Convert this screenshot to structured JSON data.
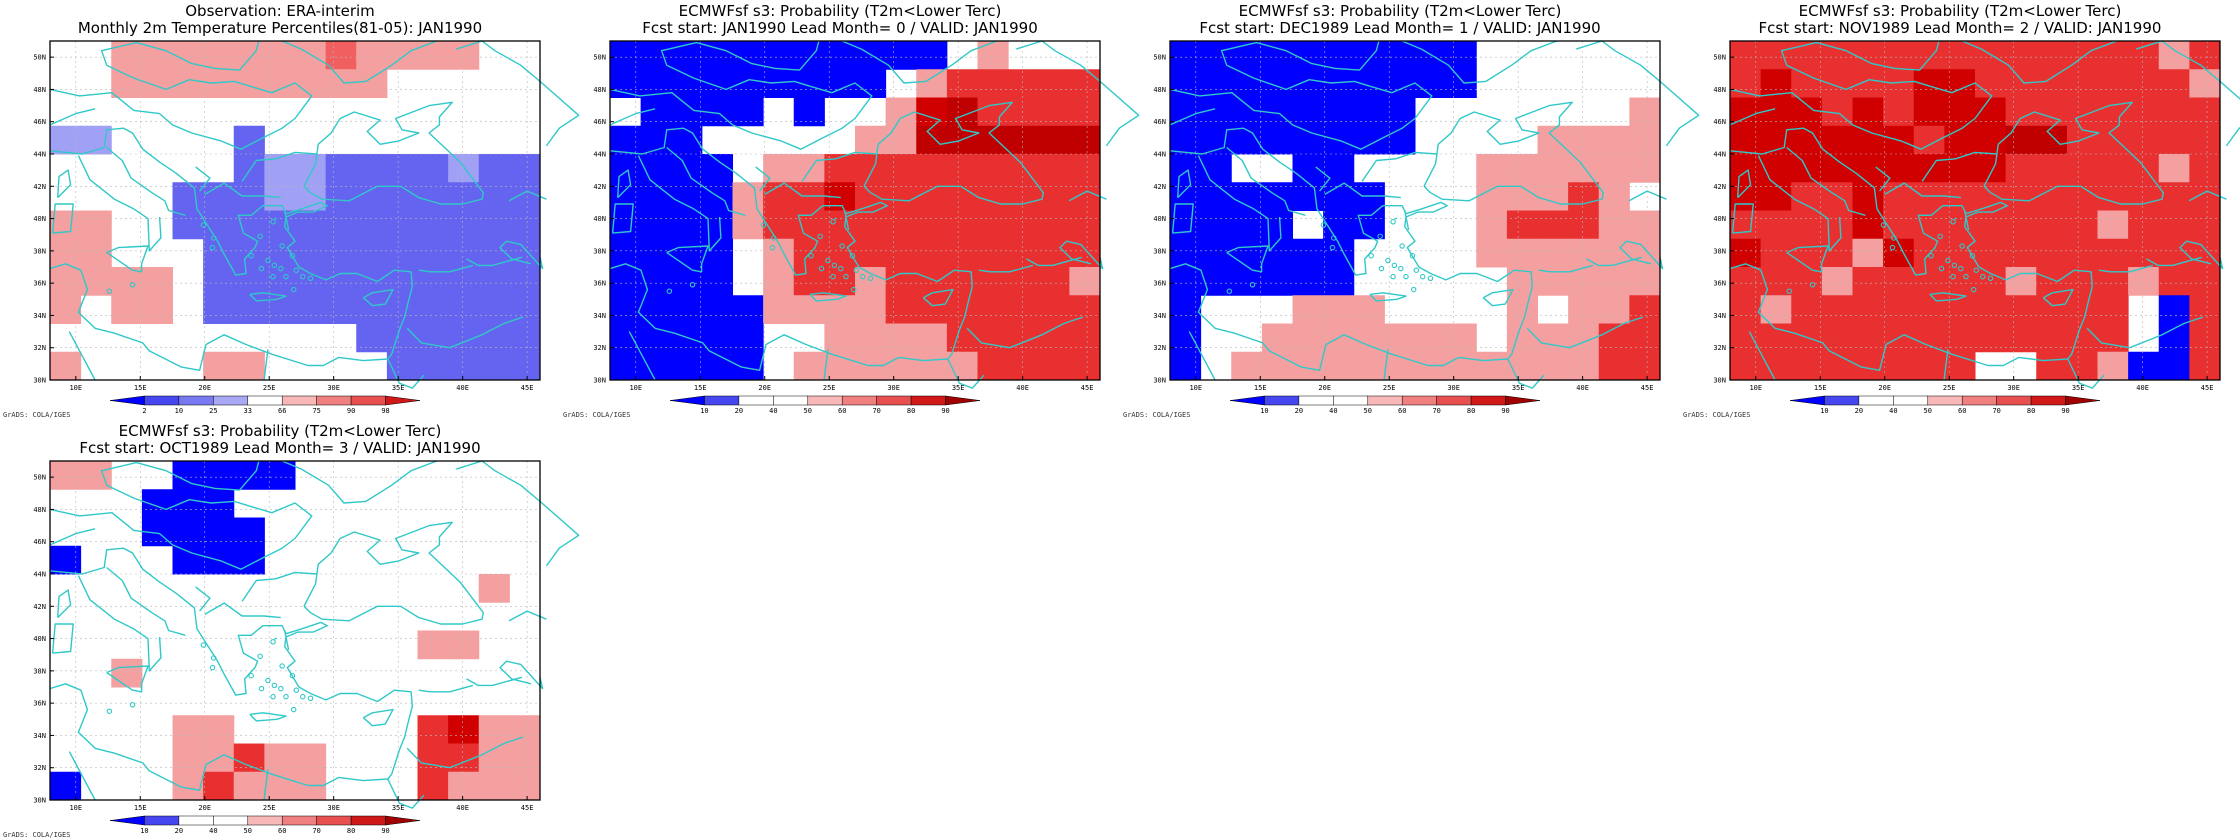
{
  "page": {
    "title": "ERA-interim observation vs ECMWF s3 forecast probabilities, JAN1990"
  },
  "colors": {
    "coast": "#30c8c8",
    "grid": "#b8b8b8",
    "frame": "#000000",
    "blue_dark": "#0000ff",
    "blue_mid": "#6464f0",
    "blue_light": "#a0a0f4",
    "red_light": "#f4a0a0",
    "red_mid": "#f06060",
    "red_strong": "#e83030",
    "red_dark": "#d00000"
  },
  "axes": {
    "lon_labels": [
      "10E",
      "15E",
      "20E",
      "25E",
      "30E",
      "35E",
      "40E",
      "45E"
    ],
    "lat_labels": [
      "30N",
      "32N",
      "34N",
      "36N",
      "38N",
      "40N",
      "42N",
      "44N",
      "46N",
      "48N",
      "50N"
    ],
    "lon_range": [
      8,
      46
    ],
    "lat_range": [
      30,
      51
    ]
  },
  "credit": "GrADS: COLA/IGES",
  "panels": [
    {
      "title1": "Observation: ERA-interim",
      "title2": "Monthly 2m Temperature Percentiles(81-05): JAN1990",
      "colorbar": {
        "labels": [
          "2",
          "10",
          "25",
          "33",
          "66",
          "75",
          "90",
          "98"
        ],
        "colors": [
          "#0000ff",
          "#4646f0",
          "#7878f0",
          "#a8a8f4",
          "#ffffff",
          "#f8b8b8",
          "#f08080",
          "#e85050",
          "#d01818"
        ]
      },
      "grid": [
        [
          0,
          0,
          3,
          3,
          3,
          3,
          3,
          3,
          3,
          5,
          3,
          3,
          3,
          3,
          0,
          0
        ],
        [
          0,
          0,
          3,
          3,
          3,
          3,
          3,
          3,
          3,
          3,
          3,
          2,
          2,
          0,
          0,
          0
        ],
        [
          0,
          0,
          0,
          0,
          0,
          0,
          0,
          0,
          0,
          0,
          0,
          0,
          0,
          0,
          0,
          0
        ],
        [
          -3,
          -3,
          0,
          0,
          0,
          0,
          -6,
          0,
          0,
          0,
          0,
          0,
          0,
          0,
          0,
          0
        ],
        [
          0,
          0,
          0,
          0,
          0,
          0,
          -6,
          -3,
          -3,
          -6,
          -6,
          -6,
          -6,
          -3,
          -6,
          -6
        ],
        [
          0,
          0,
          0,
          0,
          -6,
          -6,
          -6,
          -3,
          -3,
          -6,
          -6,
          -6,
          -6,
          -6,
          -6,
          -6
        ],
        [
          3,
          3,
          0,
          0,
          -6,
          -6,
          -6,
          -6,
          -6,
          -6,
          -6,
          -6,
          -6,
          -6,
          -6,
          -6
        ],
        [
          3,
          3,
          0,
          0,
          0,
          -6,
          -6,
          -6,
          -6,
          -6,
          -6,
          -6,
          -6,
          -6,
          -6,
          -6
        ],
        [
          3,
          3,
          3,
          3,
          0,
          -6,
          -6,
          -6,
          -6,
          -6,
          -6,
          -6,
          -6,
          -6,
          -6,
          -6
        ],
        [
          3,
          0,
          3,
          3,
          0,
          -6,
          -6,
          -6,
          -6,
          -6,
          -6,
          -6,
          -6,
          -6,
          -6,
          -6
        ],
        [
          0,
          0,
          0,
          0,
          0,
          0,
          0,
          0,
          0,
          0,
          -6,
          -6,
          -6,
          -6,
          -6,
          -6
        ],
        [
          3,
          0,
          0,
          0,
          0,
          3,
          3,
          0,
          0,
          0,
          0,
          -6,
          -6,
          -6,
          -6,
          -6
        ]
      ]
    },
    {
      "title1": "ECMWFsf s3: Probability (T2m<Lower Terc)",
      "title2": "Fcst start: JAN1990  Lead Month= 0 / VALID: JAN1990",
      "colorbar": {
        "labels": [
          "10",
          "20",
          "40",
          "50",
          "60",
          "70",
          "80",
          "90"
        ],
        "colors": [
          "#0000ff",
          "#4646f0",
          "#ffffff",
          "#ffffff",
          "#f8b8b8",
          "#f08080",
          "#e85050",
          "#d01818",
          "#a00000"
        ]
      },
      "grid": [
        [
          -9,
          -9,
          -9,
          -9,
          -9,
          -9,
          -9,
          -9,
          -9,
          -9,
          -9,
          0,
          3,
          0,
          0,
          0
        ],
        [
          -9,
          -9,
          -9,
          -9,
          -9,
          -9,
          -9,
          -9,
          -9,
          0,
          3,
          6,
          6,
          6,
          6,
          6
        ],
        [
          0,
          -9,
          -9,
          -9,
          -9,
          0,
          -9,
          0,
          0,
          3,
          8,
          9,
          6,
          6,
          6,
          6
        ],
        [
          -9,
          -9,
          -9,
          0,
          0,
          0,
          0,
          0,
          3,
          3,
          9,
          9,
          9,
          9,
          9,
          9
        ],
        [
          -9,
          -9,
          -9,
          -9,
          0,
          3,
          3,
          6,
          6,
          6,
          6,
          6,
          6,
          6,
          6,
          6
        ],
        [
          -9,
          -9,
          -9,
          -9,
          3,
          6,
          6,
          8,
          6,
          6,
          6,
          6,
          6,
          6,
          6,
          6
        ],
        [
          -9,
          -9,
          -9,
          -9,
          3,
          6,
          6,
          6,
          6,
          6,
          6,
          6,
          6,
          6,
          6,
          6
        ],
        [
          -9,
          -9,
          -9,
          -9,
          0,
          3,
          6,
          6,
          6,
          6,
          6,
          6,
          6,
          6,
          6,
          6
        ],
        [
          -9,
          -9,
          -9,
          -9,
          0,
          3,
          6,
          6,
          3,
          6,
          6,
          6,
          6,
          6,
          6,
          3
        ],
        [
          -9,
          -9,
          -9,
          -9,
          -9,
          3,
          3,
          3,
          3,
          6,
          6,
          6,
          6,
          6,
          6,
          6
        ],
        [
          -9,
          -9,
          -9,
          -9,
          -9,
          0,
          0,
          3,
          3,
          3,
          3,
          6,
          6,
          6,
          6,
          6
        ],
        [
          -9,
          -9,
          -9,
          -9,
          -9,
          0,
          3,
          3,
          3,
          3,
          3,
          3,
          6,
          6,
          6,
          6
        ]
      ]
    },
    {
      "title1": "ECMWFsf s3: Probability (T2m<Lower Terc)",
      "title2": "Fcst start: DEC1989  Lead Month= 1 / VALID: JAN1990",
      "colorbar": {
        "labels": [
          "10",
          "20",
          "40",
          "50",
          "60",
          "70",
          "80",
          "90"
        ],
        "colors": [
          "#0000ff",
          "#4646f0",
          "#ffffff",
          "#ffffff",
          "#f8b8b8",
          "#f08080",
          "#e85050",
          "#d01818",
          "#a00000"
        ]
      },
      "grid": [
        [
          -9,
          -9,
          -9,
          -9,
          -9,
          -9,
          -9,
          -9,
          -9,
          -9,
          0,
          0,
          0,
          0,
          0,
          0
        ],
        [
          -9,
          -9,
          -9,
          -9,
          -9,
          -9,
          -9,
          -9,
          -9,
          -9,
          0,
          0,
          0,
          0,
          0,
          0
        ],
        [
          -9,
          -9,
          -9,
          -9,
          -9,
          -9,
          -9,
          -9,
          0,
          0,
          0,
          0,
          0,
          0,
          0,
          3
        ],
        [
          -9,
          -9,
          -9,
          -9,
          -9,
          -9,
          -9,
          -9,
          0,
          0,
          0,
          0,
          3,
          3,
          3,
          3
        ],
        [
          -9,
          -9,
          0,
          0,
          -9,
          -9,
          0,
          0,
          0,
          0,
          3,
          3,
          3,
          3,
          3,
          3
        ],
        [
          -9,
          -9,
          -9,
          -9,
          -9,
          -9,
          -9,
          0,
          0,
          0,
          3,
          3,
          3,
          6,
          3,
          0
        ],
        [
          -9,
          -9,
          -9,
          -9,
          0,
          -9,
          -9,
          0,
          0,
          0,
          3,
          6,
          6,
          6,
          3,
          3
        ],
        [
          -9,
          -9,
          -9,
          -9,
          -9,
          -9,
          0,
          0,
          0,
          0,
          3,
          3,
          3,
          3,
          3,
          3
        ],
        [
          -9,
          -9,
          -9,
          -9,
          -9,
          -9,
          0,
          0,
          0,
          0,
          0,
          3,
          3,
          3,
          3,
          3
        ],
        [
          -9,
          0,
          0,
          0,
          3,
          3,
          3,
          0,
          0,
          0,
          0,
          3,
          0,
          3,
          3,
          6
        ],
        [
          -9,
          0,
          0,
          3,
          3,
          3,
          3,
          3,
          3,
          3,
          0,
          3,
          3,
          3,
          6,
          6
        ],
        [
          -9,
          0,
          3,
          3,
          3,
          3,
          3,
          3,
          3,
          3,
          3,
          3,
          3,
          3,
          6,
          6
        ]
      ]
    },
    {
      "title1": "ECMWFsf s3: Probability (T2m<Lower Terc)",
      "title2": "Fcst start: NOV1989  Lead Month= 2 / VALID: JAN1990",
      "colorbar": {
        "labels": [
          "10",
          "20",
          "40",
          "50",
          "60",
          "70",
          "80",
          "90"
        ],
        "colors": [
          "#0000ff",
          "#4646f0",
          "#ffffff",
          "#ffffff",
          "#f8b8b8",
          "#f08080",
          "#e85050",
          "#d01818",
          "#a00000"
        ]
      },
      "grid": [
        [
          6,
          6,
          6,
          6,
          6,
          6,
          6,
          6,
          6,
          6,
          6,
          6,
          6,
          6,
          3,
          6
        ],
        [
          6,
          8,
          6,
          6,
          6,
          6,
          8,
          8,
          6,
          6,
          6,
          6,
          6,
          6,
          6,
          3
        ],
        [
          8,
          8,
          8,
          6,
          8,
          6,
          8,
          8,
          8,
          6,
          6,
          6,
          6,
          6,
          6,
          6
        ],
        [
          8,
          8,
          8,
          8,
          8,
          8,
          6,
          8,
          8,
          9,
          9,
          6,
          6,
          6,
          6,
          6
        ],
        [
          8,
          8,
          8,
          8,
          8,
          8,
          8,
          8,
          8,
          6,
          6,
          6,
          6,
          6,
          3,
          6
        ],
        [
          8,
          8,
          6,
          6,
          8,
          6,
          6,
          6,
          6,
          6,
          6,
          6,
          6,
          6,
          6,
          6
        ],
        [
          6,
          6,
          6,
          6,
          8,
          6,
          6,
          6,
          6,
          6,
          6,
          6,
          3,
          6,
          6,
          6
        ],
        [
          8,
          6,
          6,
          6,
          3,
          8,
          6,
          6,
          6,
          6,
          6,
          6,
          6,
          6,
          6,
          6
        ],
        [
          6,
          6,
          6,
          3,
          6,
          6,
          6,
          6,
          6,
          3,
          6,
          6,
          6,
          3,
          6,
          6
        ],
        [
          6,
          3,
          6,
          6,
          6,
          6,
          6,
          6,
          6,
          6,
          6,
          6,
          6,
          0,
          -9,
          6
        ],
        [
          6,
          6,
          6,
          6,
          6,
          6,
          6,
          6,
          6,
          6,
          6,
          6,
          6,
          0,
          -9,
          6
        ],
        [
          6,
          6,
          6,
          6,
          6,
          6,
          6,
          6,
          0,
          0,
          6,
          6,
          3,
          -9,
          -9,
          6
        ]
      ]
    },
    {
      "title1": "ECMWFsf s3: Probability (T2m<Lower Terc)",
      "title2": "Fcst start: OCT1989  Lead Month= 3 / VALID: JAN1990",
      "colorbar": {
        "labels": [
          "10",
          "20",
          "40",
          "50",
          "60",
          "70",
          "80",
          "90"
        ],
        "colors": [
          "#0000ff",
          "#4646f0",
          "#ffffff",
          "#ffffff",
          "#f8b8b8",
          "#f08080",
          "#e85050",
          "#d01818",
          "#a00000"
        ]
      },
      "grid": [
        [
          3,
          3,
          0,
          0,
          -9,
          -9,
          -9,
          -9,
          0,
          0,
          0,
          0,
          0,
          0,
          0,
          0
        ],
        [
          0,
          0,
          0,
          -9,
          -9,
          -9,
          0,
          0,
          0,
          0,
          0,
          0,
          0,
          0,
          0,
          0
        ],
        [
          0,
          0,
          0,
          -9,
          -9,
          -9,
          -9,
          0,
          0,
          0,
          0,
          0,
          0,
          0,
          0,
          0
        ],
        [
          -9,
          0,
          0,
          0,
          -9,
          -9,
          -9,
          0,
          0,
          0,
          0,
          0,
          0,
          0,
          0,
          0
        ],
        [
          0,
          0,
          0,
          0,
          0,
          0,
          0,
          0,
          0,
          0,
          0,
          0,
          0,
          0,
          3,
          0
        ],
        [
          0,
          0,
          0,
          0,
          0,
          0,
          0,
          0,
          0,
          0,
          0,
          0,
          0,
          0,
          0,
          0
        ],
        [
          0,
          0,
          0,
          0,
          0,
          0,
          0,
          0,
          0,
          0,
          0,
          0,
          3,
          3,
          0,
          0
        ],
        [
          0,
          0,
          3,
          0,
          0,
          0,
          0,
          0,
          0,
          0,
          0,
          0,
          0,
          0,
          0,
          0
        ],
        [
          0,
          0,
          0,
          0,
          0,
          0,
          0,
          0,
          0,
          0,
          0,
          0,
          0,
          0,
          0,
          0
        ],
        [
          0,
          0,
          0,
          0,
          3,
          3,
          0,
          0,
          0,
          0,
          0,
          0,
          6,
          8,
          3,
          3
        ],
        [
          0,
          0,
          0,
          0,
          3,
          3,
          6,
          3,
          3,
          0,
          0,
          0,
          6,
          6,
          3,
          3
        ],
        [
          -9,
          0,
          0,
          0,
          3,
          6,
          3,
          3,
          3,
          0,
          0,
          0,
          6,
          3,
          3,
          3
        ]
      ]
    }
  ]
}
